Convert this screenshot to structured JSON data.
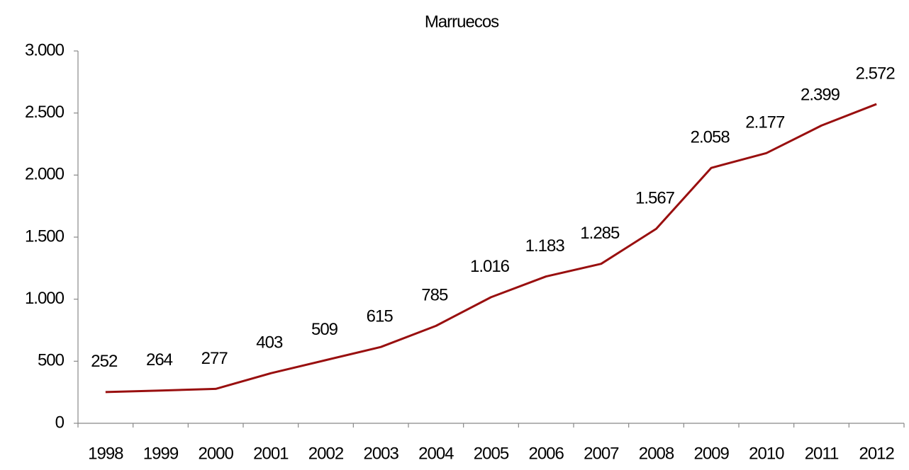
{
  "chart_data": {
    "type": "line",
    "title": "Marruecos",
    "categories": [
      "1998",
      "1999",
      "2000",
      "2001",
      "2002",
      "2003",
      "2004",
      "2005",
      "2006",
      "2007",
      "2008",
      "2009",
      "2010",
      "2011",
      "2012"
    ],
    "series": [
      {
        "name": "Marruecos",
        "color": "#990f0f",
        "values": [
          252,
          264,
          277,
          403,
          509,
          615,
          785,
          1016,
          1183,
          1285,
          1567,
          2058,
          2177,
          2399,
          2572
        ],
        "value_labels": [
          "252",
          "264",
          "277",
          "403",
          "509",
          "615",
          "785",
          "1.016",
          "1.183",
          "1.285",
          "1.567",
          "2.058",
          "2.177",
          "2.399",
          "2.572"
        ]
      }
    ],
    "ylim": [
      0,
      3000
    ],
    "yticks": [
      0,
      500,
      {
        "value": 1000,
        "label": "1.000"
      },
      {
        "value": 1500,
        "label": "1.500"
      },
      {
        "value": 2000,
        "label": "2.000"
      },
      {
        "value": 2500,
        "label": "2.500"
      },
      {
        "value": 3000,
        "label": "3.000"
      }
    ],
    "grid": false
  }
}
